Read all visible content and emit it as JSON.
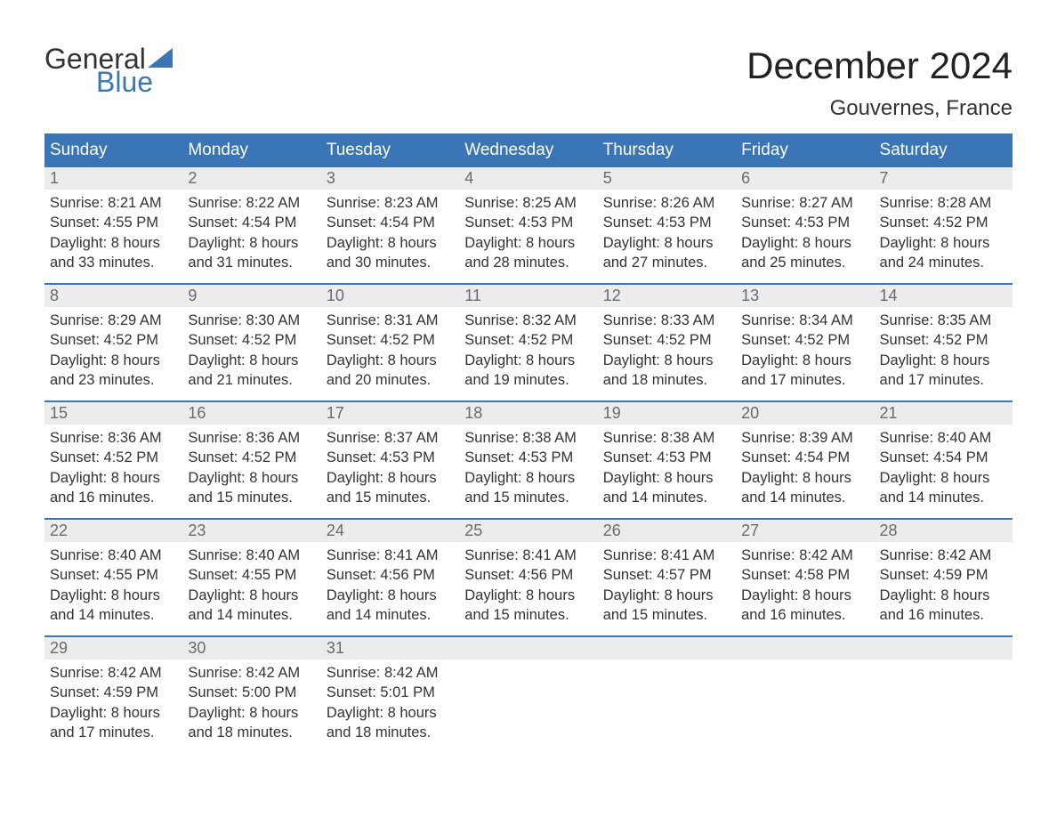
{
  "logo": {
    "text_general": "General",
    "text_blue": "Blue",
    "sail_color": "#3a76b6"
  },
  "title": "December 2024",
  "location": "Gouvernes, France",
  "colors": {
    "header_bg": "#3a76b6",
    "header_text": "#ffffff",
    "daynum_bg": "#ececec",
    "daynum_text": "#6a6a6a",
    "body_text": "#333333",
    "week_border": "#3a76b6",
    "page_bg": "#ffffff"
  },
  "typography": {
    "title_fontsize": 42,
    "location_fontsize": 24,
    "dayheader_fontsize": 19,
    "body_fontsize": 16.5,
    "font_family": "Arial"
  },
  "day_headers": [
    "Sunday",
    "Monday",
    "Tuesday",
    "Wednesday",
    "Thursday",
    "Friday",
    "Saturday"
  ],
  "weeks": [
    [
      {
        "n": "1",
        "sunrise": "Sunrise: 8:21 AM",
        "sunset": "Sunset: 4:55 PM",
        "daylight": "Daylight: 8 hours and 33 minutes."
      },
      {
        "n": "2",
        "sunrise": "Sunrise: 8:22 AM",
        "sunset": "Sunset: 4:54 PM",
        "daylight": "Daylight: 8 hours and 31 minutes."
      },
      {
        "n": "3",
        "sunrise": "Sunrise: 8:23 AM",
        "sunset": "Sunset: 4:54 PM",
        "daylight": "Daylight: 8 hours and 30 minutes."
      },
      {
        "n": "4",
        "sunrise": "Sunrise: 8:25 AM",
        "sunset": "Sunset: 4:53 PM",
        "daylight": "Daylight: 8 hours and 28 minutes."
      },
      {
        "n": "5",
        "sunrise": "Sunrise: 8:26 AM",
        "sunset": "Sunset: 4:53 PM",
        "daylight": "Daylight: 8 hours and 27 minutes."
      },
      {
        "n": "6",
        "sunrise": "Sunrise: 8:27 AM",
        "sunset": "Sunset: 4:53 PM",
        "daylight": "Daylight: 8 hours and 25 minutes."
      },
      {
        "n": "7",
        "sunrise": "Sunrise: 8:28 AM",
        "sunset": "Sunset: 4:52 PM",
        "daylight": "Daylight: 8 hours and 24 minutes."
      }
    ],
    [
      {
        "n": "8",
        "sunrise": "Sunrise: 8:29 AM",
        "sunset": "Sunset: 4:52 PM",
        "daylight": "Daylight: 8 hours and 23 minutes."
      },
      {
        "n": "9",
        "sunrise": "Sunrise: 8:30 AM",
        "sunset": "Sunset: 4:52 PM",
        "daylight": "Daylight: 8 hours and 21 minutes."
      },
      {
        "n": "10",
        "sunrise": "Sunrise: 8:31 AM",
        "sunset": "Sunset: 4:52 PM",
        "daylight": "Daylight: 8 hours and 20 minutes."
      },
      {
        "n": "11",
        "sunrise": "Sunrise: 8:32 AM",
        "sunset": "Sunset: 4:52 PM",
        "daylight": "Daylight: 8 hours and 19 minutes."
      },
      {
        "n": "12",
        "sunrise": "Sunrise: 8:33 AM",
        "sunset": "Sunset: 4:52 PM",
        "daylight": "Daylight: 8 hours and 18 minutes."
      },
      {
        "n": "13",
        "sunrise": "Sunrise: 8:34 AM",
        "sunset": "Sunset: 4:52 PM",
        "daylight": "Daylight: 8 hours and 17 minutes."
      },
      {
        "n": "14",
        "sunrise": "Sunrise: 8:35 AM",
        "sunset": "Sunset: 4:52 PM",
        "daylight": "Daylight: 8 hours and 17 minutes."
      }
    ],
    [
      {
        "n": "15",
        "sunrise": "Sunrise: 8:36 AM",
        "sunset": "Sunset: 4:52 PM",
        "daylight": "Daylight: 8 hours and 16 minutes."
      },
      {
        "n": "16",
        "sunrise": "Sunrise: 8:36 AM",
        "sunset": "Sunset: 4:52 PM",
        "daylight": "Daylight: 8 hours and 15 minutes."
      },
      {
        "n": "17",
        "sunrise": "Sunrise: 8:37 AM",
        "sunset": "Sunset: 4:53 PM",
        "daylight": "Daylight: 8 hours and 15 minutes."
      },
      {
        "n": "18",
        "sunrise": "Sunrise: 8:38 AM",
        "sunset": "Sunset: 4:53 PM",
        "daylight": "Daylight: 8 hours and 15 minutes."
      },
      {
        "n": "19",
        "sunrise": "Sunrise: 8:38 AM",
        "sunset": "Sunset: 4:53 PM",
        "daylight": "Daylight: 8 hours and 14 minutes."
      },
      {
        "n": "20",
        "sunrise": "Sunrise: 8:39 AM",
        "sunset": "Sunset: 4:54 PM",
        "daylight": "Daylight: 8 hours and 14 minutes."
      },
      {
        "n": "21",
        "sunrise": "Sunrise: 8:40 AM",
        "sunset": "Sunset: 4:54 PM",
        "daylight": "Daylight: 8 hours and 14 minutes."
      }
    ],
    [
      {
        "n": "22",
        "sunrise": "Sunrise: 8:40 AM",
        "sunset": "Sunset: 4:55 PM",
        "daylight": "Daylight: 8 hours and 14 minutes."
      },
      {
        "n": "23",
        "sunrise": "Sunrise: 8:40 AM",
        "sunset": "Sunset: 4:55 PM",
        "daylight": "Daylight: 8 hours and 14 minutes."
      },
      {
        "n": "24",
        "sunrise": "Sunrise: 8:41 AM",
        "sunset": "Sunset: 4:56 PM",
        "daylight": "Daylight: 8 hours and 14 minutes."
      },
      {
        "n": "25",
        "sunrise": "Sunrise: 8:41 AM",
        "sunset": "Sunset: 4:56 PM",
        "daylight": "Daylight: 8 hours and 15 minutes."
      },
      {
        "n": "26",
        "sunrise": "Sunrise: 8:41 AM",
        "sunset": "Sunset: 4:57 PM",
        "daylight": "Daylight: 8 hours and 15 minutes."
      },
      {
        "n": "27",
        "sunrise": "Sunrise: 8:42 AM",
        "sunset": "Sunset: 4:58 PM",
        "daylight": "Daylight: 8 hours and 16 minutes."
      },
      {
        "n": "28",
        "sunrise": "Sunrise: 8:42 AM",
        "sunset": "Sunset: 4:59 PM",
        "daylight": "Daylight: 8 hours and 16 minutes."
      }
    ],
    [
      {
        "n": "29",
        "sunrise": "Sunrise: 8:42 AM",
        "sunset": "Sunset: 4:59 PM",
        "daylight": "Daylight: 8 hours and 17 minutes."
      },
      {
        "n": "30",
        "sunrise": "Sunrise: 8:42 AM",
        "sunset": "Sunset: 5:00 PM",
        "daylight": "Daylight: 8 hours and 18 minutes."
      },
      {
        "n": "31",
        "sunrise": "Sunrise: 8:42 AM",
        "sunset": "Sunset: 5:01 PM",
        "daylight": "Daylight: 8 hours and 18 minutes."
      },
      {
        "empty": true
      },
      {
        "empty": true
      },
      {
        "empty": true
      },
      {
        "empty": true
      }
    ]
  ]
}
